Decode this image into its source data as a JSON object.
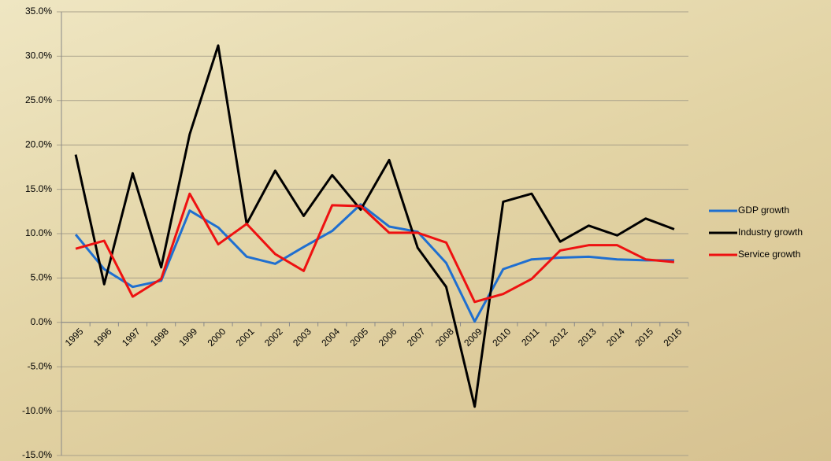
{
  "chart_data": {
    "type": "line",
    "categories": [
      "1995",
      "1996",
      "1997",
      "1998",
      "1999",
      "2000",
      "2001",
      "2002",
      "2003",
      "2004",
      "2005",
      "2006",
      "2007",
      "2008",
      "2009",
      "2010",
      "2011",
      "2012",
      "2013",
      "2014",
      "2015",
      "2016"
    ],
    "series": [
      {
        "name": "GDP growth",
        "color": "#1f6fd0",
        "values": [
          9.9,
          6.0,
          4.0,
          4.7,
          12.6,
          10.7,
          7.4,
          6.6,
          8.5,
          10.3,
          13.3,
          10.8,
          10.2,
          6.7,
          0.1,
          6.0,
          7.1,
          7.3,
          7.4,
          7.1,
          7.0,
          7.0
        ]
      },
      {
        "name": "Industry growth",
        "color": "#000000",
        "values": [
          18.9,
          4.3,
          16.8,
          6.2,
          21.2,
          31.2,
          11.1,
          17.1,
          12.0,
          16.6,
          12.7,
          18.3,
          8.4,
          4.0,
          -9.5,
          13.6,
          14.5,
          9.1,
          10.9,
          9.8,
          11.7,
          10.5
        ]
      },
      {
        "name": "Service growth",
        "color": "#ee1111",
        "values": [
          8.3,
          9.2,
          2.9,
          4.9,
          14.5,
          8.8,
          11.1,
          7.7,
          5.8,
          13.2,
          13.1,
          10.1,
          10.1,
          9.0,
          2.3,
          3.2,
          4.9,
          8.1,
          8.7,
          8.7,
          7.1,
          6.8
        ]
      }
    ],
    "ylim": [
      -15,
      35
    ],
    "yticks": [
      {
        "value": -15,
        "label": "-15.0%"
      },
      {
        "value": -10,
        "label": "-10.0%"
      },
      {
        "value": -5,
        "label": "-5.0%"
      },
      {
        "value": 0,
        "label": "0.0%"
      },
      {
        "value": 5,
        "label": "5.0%"
      },
      {
        "value": 10,
        "label": "10.0%"
      },
      {
        "value": 15,
        "label": "15.0%"
      },
      {
        "value": 20,
        "label": "20.0%"
      },
      {
        "value": 25,
        "label": "25.0%"
      },
      {
        "value": 30,
        "label": "30.0%"
      },
      {
        "value": 35,
        "label": "35.0%"
      }
    ],
    "grid": true,
    "legend": "right"
  }
}
